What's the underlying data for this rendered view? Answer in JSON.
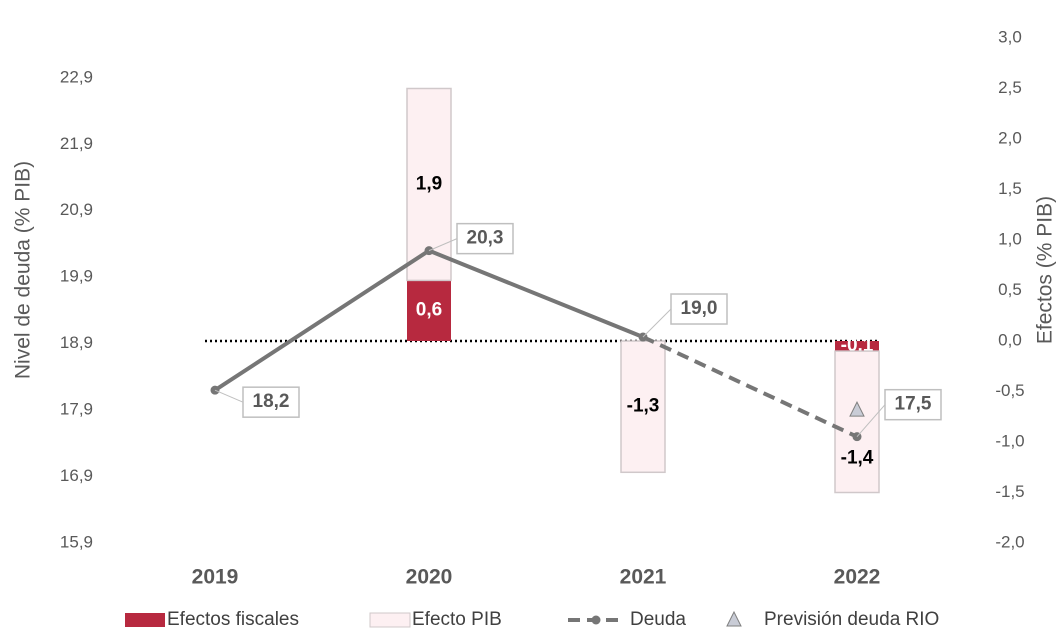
{
  "chart_data": {
    "type": "bar-line",
    "ylabel": "Nivel de deuda (% PIB)",
    "y2label": "Efectos (% PIB)",
    "categories": [
      "2019",
      "2020",
      "2021",
      "2022"
    ],
    "ylim": [
      15.9,
      23.5
    ],
    "yticks": [
      {
        "value": 15.9,
        "label": "15,9"
      },
      {
        "value": 16.9,
        "label": "16,9"
      },
      {
        "value": 17.9,
        "label": "17,9"
      },
      {
        "value": 18.9,
        "label": "18,9"
      },
      {
        "value": 19.9,
        "label": "19,9"
      },
      {
        "value": 20.9,
        "label": "20,9"
      },
      {
        "value": 21.9,
        "label": "21,9"
      },
      {
        "value": 22.9,
        "label": "22,9"
      }
    ],
    "y2lim": [
      -2.0,
      3.0
    ],
    "y2ticks": [
      {
        "value": -2.0,
        "label": "-2,0"
      },
      {
        "value": -1.5,
        "label": "-1,5"
      },
      {
        "value": -1.0,
        "label": "-1,0"
      },
      {
        "value": -0.5,
        "label": "-0,5"
      },
      {
        "value": 0.0,
        "label": "0,0"
      },
      {
        "value": 0.5,
        "label": "0,5"
      },
      {
        "value": 1.0,
        "label": "1,0"
      },
      {
        "value": 1.5,
        "label": "1,5"
      },
      {
        "value": 2.0,
        "label": "2,0"
      },
      {
        "value": 2.5,
        "label": "2,5"
      },
      {
        "value": 3.0,
        "label": "3,0"
      }
    ],
    "series": [
      {
        "name": "Efectos fiscales",
        "type": "bar",
        "axis": "y2",
        "color": "#b7293f",
        "values": [
          null,
          0.6,
          null,
          -0.1
        ],
        "value_labels": [
          null,
          "0,6",
          null,
          "-0,1"
        ]
      },
      {
        "name": "Efecto PIB",
        "type": "bar",
        "axis": "y2",
        "color": "#fdf0f2",
        "values": [
          null,
          1.9,
          -1.3,
          -1.4
        ],
        "value_labels": [
          null,
          "1,9",
          "-1,3",
          "-1,4"
        ]
      },
      {
        "name": "Deuda",
        "type": "line",
        "color": "#767676",
        "values": [
          18.2,
          20.3,
          19.0,
          17.5
        ],
        "value_labels": [
          "18,2",
          "20,3",
          "19,0",
          "17,5"
        ]
      },
      {
        "name": "Previsión deuda RIO",
        "type": "marker",
        "color": "#c9ccd6",
        "values": [
          null,
          null,
          null,
          17.9
        ]
      }
    ]
  }
}
